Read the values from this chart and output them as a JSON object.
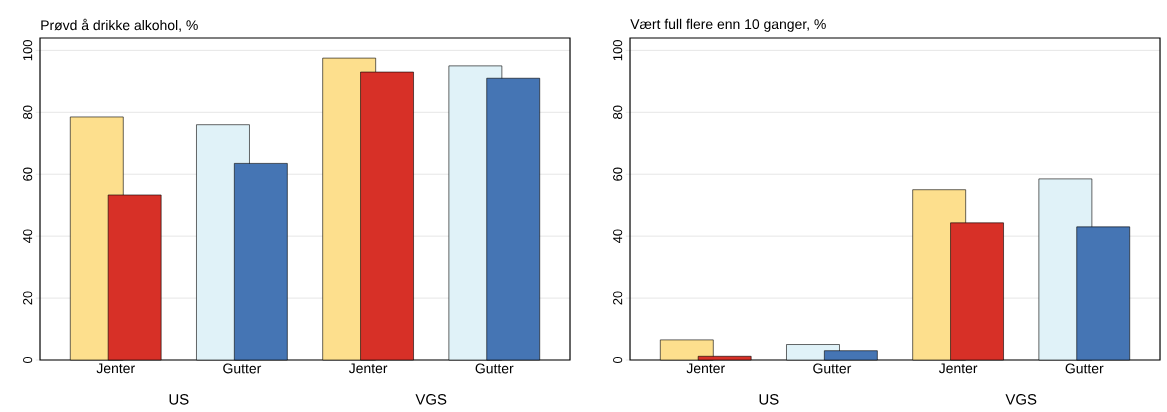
{
  "chart_data": [
    {
      "type": "bar",
      "title": "Prøvd å drikke alkohol, %",
      "categories": [
        "Jenter",
        "Gutter",
        "Jenter",
        "Gutter"
      ],
      "series": [
        {
          "colors": [
            "#fddf8d",
            "#e0f2f8",
            "#fddf8d",
            "#e0f2f8"
          ],
          "values": [
            78.5,
            76,
            97.5,
            95
          ]
        },
        {
          "colors": [
            "#d73027",
            "#4575b4",
            "#d73027",
            "#4575b4"
          ],
          "values": [
            53.3,
            63.5,
            93,
            91
          ]
        }
      ],
      "ylim": [
        0,
        104
      ],
      "yticks": [
        0,
        20,
        40,
        60,
        80,
        100
      ],
      "grid": "y",
      "annotations": [
        "US",
        "VGS"
      ]
    },
    {
      "type": "bar",
      "title": "Vært full flere enn 10 ganger, %",
      "categories": [
        "Jenter",
        "Gutter",
        "Jenter",
        "Gutter"
      ],
      "series": [
        {
          "colors": [
            "#fddf8d",
            "#e0f2f8",
            "#fddf8d",
            "#e0f2f8"
          ],
          "values": [
            6.5,
            5,
            55,
            58.5
          ]
        },
        {
          "colors": [
            "#d73027",
            "#4575b4",
            "#d73027",
            "#4575b4"
          ],
          "values": [
            1.2,
            3,
            44.3,
            43
          ]
        }
      ],
      "ylim": [
        0,
        104
      ],
      "yticks": [
        0,
        20,
        40,
        60,
        80,
        100
      ],
      "grid": "y",
      "annotations": [
        "US",
        "VGS"
      ]
    }
  ]
}
